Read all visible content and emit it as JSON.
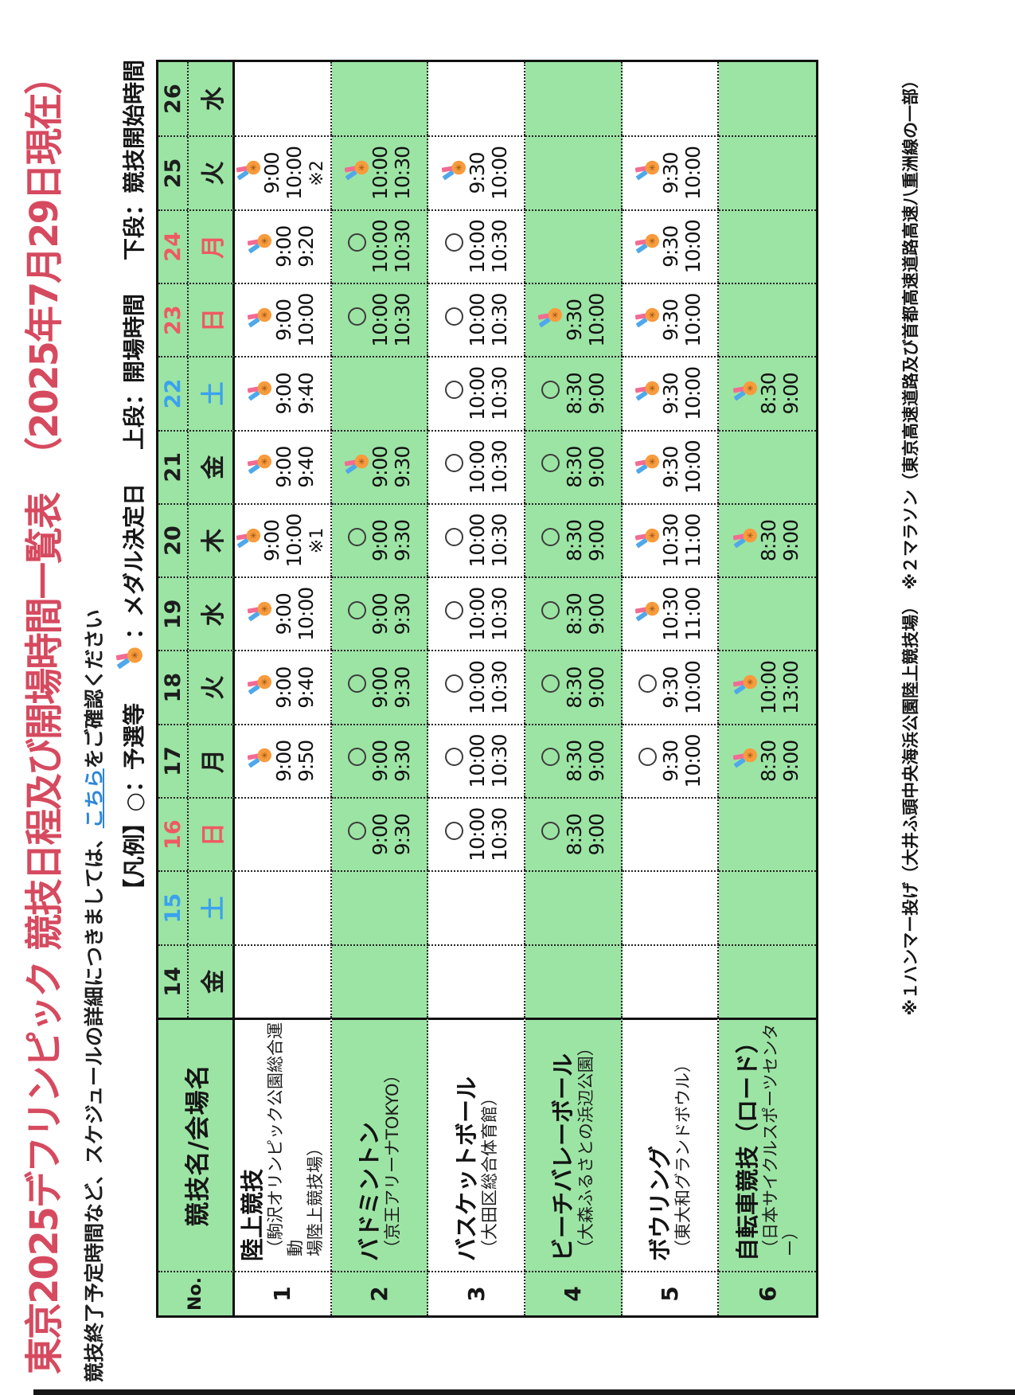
{
  "page": {
    "title": "東京2025デフリンピック 競技日程及び開場時間一覧表",
    "title_suffix": "（2025年7月29日現在）",
    "subtitle_pre": "競技終了予定時間など、スケジュールの詳細につきましては、",
    "subtitle_link": "こちら",
    "subtitle_post": "をご確認ください",
    "footnote": "※１ハンマー投げ（大井ふ頭中央海浜公園陸上競技場）　※２マラソン（東京高速道路及び首都高速道路高速八重洲線の一部）"
  },
  "legend": {
    "prefix": "【凡例】",
    "circle_label": "○：予選等",
    "medal_label": "：メダル決定日",
    "upper_label": "上段：開場時間",
    "lower_label": "下段：競技開始時間"
  },
  "colors": {
    "band_green": "#9ce4a4",
    "title_red": "#d64a5f",
    "link_blue": "#2d86d8",
    "day_red": "#ee5a62",
    "day_blue": "#3aa2ee",
    "medal_orange": "#f89b3c",
    "ribbon_blue": "#4fa8ea",
    "ribbon_pink": "#f26b93"
  },
  "table": {
    "no_header": "No.",
    "name_header": "競技名/会場名",
    "dates": [
      {
        "day": "14",
        "dow": "金",
        "color": "black"
      },
      {
        "day": "15",
        "dow": "土",
        "color": "blue"
      },
      {
        "day": "16",
        "dow": "日",
        "color": "red"
      },
      {
        "day": "17",
        "dow": "月",
        "color": "black"
      },
      {
        "day": "18",
        "dow": "火",
        "color": "black"
      },
      {
        "day": "19",
        "dow": "水",
        "color": "black"
      },
      {
        "day": "20",
        "dow": "木",
        "color": "black"
      },
      {
        "day": "21",
        "dow": "金",
        "color": "black"
      },
      {
        "day": "22",
        "dow": "土",
        "color": "blue"
      },
      {
        "day": "23",
        "dow": "日",
        "color": "red"
      },
      {
        "day": "24",
        "dow": "月",
        "color": "red"
      },
      {
        "day": "25",
        "dow": "火",
        "color": "black"
      },
      {
        "day": "26",
        "dow": "水",
        "color": "black"
      }
    ],
    "sports": [
      {
        "no": "1",
        "name": "陸上競技",
        "band": "white",
        "venue_lines": [
          "（駒沢オリンピック公園総合運動",
          "場陸上競技場）"
        ],
        "cells": {
          "17": {
            "icon": "medal",
            "open": "9:00",
            "start": "9:50"
          },
          "18": {
            "icon": "medal",
            "open": "9:00",
            "start": "9:40"
          },
          "19": {
            "icon": "medal",
            "open": "9:00",
            "start": "10:00"
          },
          "20": {
            "icon": "medal",
            "open": "9:00",
            "start": "10:00",
            "note": "※1"
          },
          "21": {
            "icon": "medal",
            "open": "9:00",
            "start": "9:40"
          },
          "22": {
            "icon": "medal",
            "open": "9:00",
            "start": "9:40"
          },
          "23": {
            "icon": "medal",
            "open": "9:00",
            "start": "10:00"
          },
          "24": {
            "icon": "medal",
            "open": "9:00",
            "start": "9:20"
          },
          "25": {
            "icon": "medal",
            "open": "9:00",
            "start": "10:00",
            "note": "※2"
          }
        }
      },
      {
        "no": "2",
        "name": "バドミントン",
        "band": "green",
        "venue_lines": [
          "（京王アリーナTOKYO）"
        ],
        "cells": {
          "16": {
            "icon": "circle",
            "open": "9:00",
            "start": "9:30"
          },
          "17": {
            "icon": "circle",
            "open": "9:00",
            "start": "9:30"
          },
          "18": {
            "icon": "circle",
            "open": "9:00",
            "start": "9:30"
          },
          "19": {
            "icon": "circle",
            "open": "9:00",
            "start": "9:30"
          },
          "20": {
            "icon": "circle",
            "open": "9:00",
            "start": "9:30"
          },
          "21": {
            "icon": "medal",
            "open": "9:00",
            "start": "9:30"
          },
          "23": {
            "icon": "circle",
            "open": "10:00",
            "start": "10:30"
          },
          "24": {
            "icon": "circle",
            "open": "10:00",
            "start": "10:30"
          },
          "25": {
            "icon": "medal",
            "open": "10:00",
            "start": "10:30"
          }
        }
      },
      {
        "no": "3",
        "name": "バスケットボール",
        "band": "white",
        "venue_lines": [
          "（大田区総合体育館）"
        ],
        "cells": {
          "16": {
            "icon": "circle",
            "open": "10:00",
            "start": "10:30"
          },
          "17": {
            "icon": "circle",
            "open": "10:00",
            "start": "10:30"
          },
          "18": {
            "icon": "circle",
            "open": "10:00",
            "start": "10:30"
          },
          "19": {
            "icon": "circle",
            "open": "10:00",
            "start": "10:30"
          },
          "20": {
            "icon": "circle",
            "open": "10:00",
            "start": "10:30"
          },
          "21": {
            "icon": "circle",
            "open": "10:00",
            "start": "10:30"
          },
          "22": {
            "icon": "circle",
            "open": "10:00",
            "start": "10:30"
          },
          "23": {
            "icon": "circle",
            "open": "10:00",
            "start": "10:30"
          },
          "24": {
            "icon": "circle",
            "open": "10:00",
            "start": "10:30"
          },
          "25": {
            "icon": "medal",
            "open": "9:30",
            "start": "10:00"
          }
        }
      },
      {
        "no": "4",
        "name": "ビーチバレーボール",
        "band": "green",
        "venue_lines": [
          "（大森ふるさとの浜辺公園）"
        ],
        "cells": {
          "16": {
            "icon": "circle",
            "open": "8:30",
            "start": "9:00"
          },
          "17": {
            "icon": "circle",
            "open": "8:30",
            "start": "9:00"
          },
          "18": {
            "icon": "circle",
            "open": "8:30",
            "start": "9:00"
          },
          "19": {
            "icon": "circle",
            "open": "8:30",
            "start": "9:00"
          },
          "20": {
            "icon": "circle",
            "open": "8:30",
            "start": "9:00"
          },
          "21": {
            "icon": "circle",
            "open": "8:30",
            "start": "9:00"
          },
          "22": {
            "icon": "circle",
            "open": "8:30",
            "start": "9:00"
          },
          "23": {
            "icon": "medal",
            "open": "9:30",
            "start": "10:00"
          }
        }
      },
      {
        "no": "5",
        "name": "ボウリング",
        "band": "white",
        "venue_lines": [
          "（東大和グランドボウル）"
        ],
        "cells": {
          "17": {
            "icon": "circle",
            "open": "9:30",
            "start": "10:00"
          },
          "18": {
            "icon": "circle",
            "open": "9:30",
            "start": "10:00"
          },
          "19": {
            "icon": "medal",
            "open": "10:30",
            "start": "11:00"
          },
          "20": {
            "icon": "medal",
            "open": "10:30",
            "start": "11:00"
          },
          "21": {
            "icon": "medal",
            "open": "9:30",
            "start": "10:00"
          },
          "22": {
            "icon": "medal",
            "open": "9:30",
            "start": "10:00"
          },
          "23": {
            "icon": "medal",
            "open": "9:30",
            "start": "10:00"
          },
          "24": {
            "icon": "medal",
            "open": "9:30",
            "start": "10:00"
          },
          "25": {
            "icon": "medal",
            "open": "9:30",
            "start": "10:00"
          }
        }
      },
      {
        "no": "6",
        "name": "自転車競技（ロード）",
        "band": "green",
        "venue_lines": [
          "（日本サイクルスポーツセンター）"
        ],
        "cells": {
          "17": {
            "icon": "medal",
            "open": "8:30",
            "start": "9:00"
          },
          "18": {
            "icon": "medal",
            "open": "10:00",
            "start": "13:00"
          },
          "20": {
            "icon": "medal",
            "open": "8:30",
            "start": "9:00"
          },
          "22": {
            "icon": "medal",
            "open": "8:30",
            "start": "9:00"
          }
        }
      }
    ]
  }
}
